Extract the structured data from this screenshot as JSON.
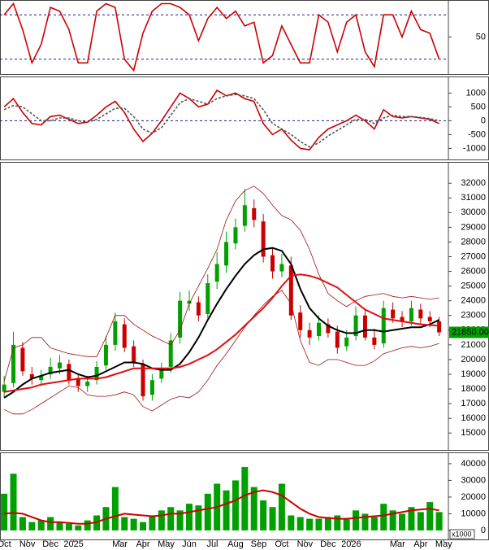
{
  "chart_data": [
    {
      "type": "line",
      "xlim": [
        -0.18,
        19.2
      ],
      "ylim": [
        0,
        100
      ],
      "yticks": [
        50
      ],
      "reference_lines": [
        80,
        20
      ],
      "x": [
        0,
        0.4,
        0.8,
        1.2,
        1.6,
        2,
        2.4,
        2.8,
        3.2,
        3.6,
        4,
        4.4,
        4.8,
        5.2,
        5.6,
        6,
        6.4,
        6.8,
        7.2,
        7.6,
        8,
        8.4,
        8.8,
        9.2,
        9.6,
        10,
        10.4,
        10.8,
        11.2,
        11.6,
        12,
        12.4,
        12.8,
        13.2,
        13.6,
        14,
        14.4,
        14.8,
        15.2,
        15.6,
        16,
        16.4,
        16.8,
        17.2,
        17.6,
        18,
        18.4,
        18.8
      ],
      "series": [
        {
          "color": "#cc0000",
          "values": [
            80,
            95,
            60,
            15,
            40,
            90,
            85,
            60,
            15,
            15,
            85,
            95,
            90,
            20,
            5,
            55,
            85,
            95,
            95,
            90,
            80,
            45,
            75,
            90,
            75,
            85,
            65,
            70,
            15,
            25,
            65,
            40,
            15,
            15,
            80,
            70,
            30,
            70,
            80,
            30,
            10,
            80,
            80,
            50,
            85,
            60,
            55,
            20
          ]
        }
      ]
    },
    {
      "type": "line",
      "xlim": [
        -0.18,
        19.2
      ],
      "ylim": [
        -1400,
        1600
      ],
      "yticks": [
        1000,
        500,
        0,
        -500,
        -1000
      ],
      "reference_lines": [
        0
      ],
      "x": [
        0,
        0.4,
        0.8,
        1.2,
        1.6,
        2,
        2.4,
        2.8,
        3.2,
        3.6,
        4,
        4.4,
        4.8,
        5.2,
        5.6,
        6,
        6.4,
        6.8,
        7.2,
        7.6,
        8,
        8.4,
        8.8,
        9.2,
        9.6,
        10,
        10.4,
        10.8,
        11.2,
        11.6,
        12,
        12.4,
        12.8,
        13.2,
        13.6,
        14,
        14.4,
        14.8,
        15.2,
        15.6,
        16,
        16.4,
        16.8,
        17.2,
        17.6,
        18,
        18.4,
        18.8
      ],
      "series": [
        {
          "color": "#cc0000",
          "values": [
            500,
            800,
            300,
            -100,
            -150,
            150,
            200,
            50,
            -100,
            -50,
            200,
            500,
            700,
            300,
            -300,
            -750,
            -450,
            0,
            500,
            1000,
            800,
            500,
            600,
            1100,
            900,
            1000,
            800,
            700,
            -100,
            -500,
            -300,
            -700,
            -1000,
            -1050,
            -600,
            -300,
            -150,
            0,
            200,
            0,
            -300,
            400,
            150,
            100,
            150,
            100,
            50,
            -100
          ]
        },
        {
          "color": "#555555",
          "dashed": true,
          "values": [
            400,
            550,
            500,
            250,
            0,
            0,
            100,
            100,
            0,
            -50,
            50,
            250,
            450,
            450,
            150,
            -300,
            -450,
            -250,
            200,
            650,
            800,
            700,
            600,
            800,
            900,
            950,
            900,
            800,
            400,
            -100,
            -300,
            -500,
            -750,
            -950,
            -800,
            -550,
            -350,
            -150,
            50,
            50,
            -100,
            100,
            200,
            150,
            150,
            120,
            80,
            0
          ]
        }
      ]
    },
    {
      "type": "candlestick",
      "xlim": [
        -0.18,
        19.2
      ],
      "ylim": [
        13850,
        33450
      ],
      "yticks": [
        15000,
        16000,
        17000,
        18000,
        19000,
        20000,
        21000,
        22000,
        23000,
        24000,
        25000,
        26000,
        27000,
        28000,
        29000,
        30000,
        31000,
        32000
      ],
      "up_color": "#00a000",
      "down_color": "#cc0000",
      "x": [
        0,
        0.4,
        0.8,
        1.2,
        1.6,
        2,
        2.4,
        2.8,
        3.2,
        3.6,
        4,
        4.4,
        4.8,
        5.2,
        5.6,
        6,
        6.4,
        6.8,
        7.2,
        7.6,
        8,
        8.4,
        8.8,
        9.2,
        9.6,
        10,
        10.4,
        10.8,
        11.2,
        11.6,
        12,
        12.4,
        12.8,
        13.2,
        13.6,
        14,
        14.4,
        14.8,
        15.2,
        15.6,
        16,
        16.4,
        16.8,
        17.2,
        17.6,
        18,
        18.4,
        18.8
      ],
      "open": [
        17800,
        18400,
        20800,
        19000,
        18600,
        19000,
        19400,
        19700,
        18700,
        18200,
        18600,
        19600,
        21000,
        22400,
        20900,
        19700,
        17600,
        18700,
        19500,
        21500,
        23800,
        23900,
        23100,
        25300,
        26400,
        27900,
        29100,
        30300,
        29400,
        27100,
        26000,
        26400,
        23200,
        22000,
        21600,
        22400,
        21900,
        20900,
        21600,
        23000,
        21500,
        21100,
        23400,
        22900,
        22600,
        23400,
        22900,
        22600
      ],
      "high": [
        18900,
        21900,
        21200,
        19500,
        19300,
        20100,
        20300,
        20000,
        19000,
        18900,
        19900,
        21600,
        23200,
        22800,
        21300,
        20000,
        19000,
        19800,
        21800,
        24600,
        24700,
        24300,
        25800,
        27300,
        28700,
        29600,
        31600,
        30900,
        29900,
        27600,
        27200,
        27000,
        23700,
        22500,
        23000,
        22800,
        22300,
        22000,
        23600,
        23500,
        22100,
        24000,
        23900,
        23300,
        24000,
        23800,
        23300,
        22900
      ],
      "low": [
        17400,
        18100,
        18900,
        18300,
        18200,
        18700,
        19000,
        18300,
        17800,
        17800,
        18300,
        19300,
        20600,
        20500,
        19500,
        17200,
        17200,
        18400,
        19100,
        21100,
        23300,
        22600,
        22800,
        24800,
        25900,
        27500,
        28700,
        29000,
        26600,
        25500,
        25600,
        22700,
        21500,
        21000,
        21300,
        21500,
        20400,
        20600,
        21300,
        21300,
        20700,
        20800,
        22500,
        22200,
        22300,
        22400,
        22200,
        21600
      ],
      "close": [
        18300,
        21000,
        19200,
        18700,
        18900,
        19500,
        19800,
        18600,
        18200,
        18500,
        19500,
        21000,
        22600,
        20800,
        19800,
        17500,
        18600,
        19400,
        21300,
        24000,
        24000,
        23000,
        25200,
        26500,
        28000,
        29000,
        30500,
        29500,
        27000,
        26000,
        26500,
        23000,
        22000,
        21500,
        22500,
        21800,
        20800,
        21500,
        23000,
        21500,
        21000,
        23500,
        22800,
        22600,
        23500,
        22800,
        22600,
        21850
      ],
      "series": [
        {
          "color": "#a01010",
          "width": 0.8,
          "values": [
            18500,
            20800,
            21000,
            21500,
            21500,
            20800,
            20600,
            20400,
            20300,
            20200,
            20200,
            21500,
            23000,
            23000,
            22400,
            22000,
            21600,
            21300,
            21000,
            22000,
            23800,
            25000,
            26200,
            27500,
            29500,
            30800,
            31500,
            31800,
            31300,
            30500,
            29800,
            29500,
            28800,
            27500,
            25800,
            24500,
            24000,
            23600,
            24000,
            24300,
            24400,
            24500,
            24300,
            24200,
            24300,
            24200,
            24100,
            24200
          ]
        },
        {
          "color": "#a01010",
          "width": 0.8,
          "values": [
            16600,
            16300,
            16300,
            16600,
            17000,
            17400,
            17800,
            18200,
            18100,
            17600,
            17500,
            17500,
            17600,
            17800,
            17600,
            16800,
            16500,
            16900,
            17300,
            17500,
            17400,
            17800,
            18600,
            19600,
            20400,
            21300,
            22200,
            23000,
            23700,
            24300,
            24700,
            23800,
            21300,
            19800,
            19600,
            20000,
            20000,
            19800,
            19600,
            19600,
            19900,
            20400,
            20600,
            20800,
            20900,
            20800,
            20900,
            21100
          ]
        },
        {
          "color": "#000000",
          "width": 2,
          "values": [
            17400,
            17800,
            18300,
            18700,
            18900,
            19100,
            19200,
            19300,
            19000,
            18800,
            18900,
            19200,
            19500,
            19800,
            19800,
            19700,
            19400,
            19300,
            19300,
            19700,
            20500,
            21500,
            22700,
            23800,
            24800,
            25700,
            26500,
            27100,
            27500,
            27600,
            27400,
            26500,
            24800,
            23500,
            22800,
            22300,
            22000,
            21800,
            21800,
            22000,
            22000,
            21900,
            22000,
            22100,
            22200,
            22200,
            22400,
            22700
          ]
        },
        {
          "color": "#dd1010",
          "width": 2,
          "values": [
            17800,
            17900,
            18000,
            18100,
            18300,
            18400,
            18500,
            18600,
            18700,
            18700,
            18700,
            18800,
            19000,
            19200,
            19400,
            19400,
            19400,
            19400,
            19400,
            19500,
            19700,
            20000,
            20300,
            20700,
            21200,
            21700,
            22300,
            22900,
            23500,
            24200,
            25000,
            25700,
            25800,
            25700,
            25500,
            25200,
            24900,
            24400,
            23900,
            23400,
            23100,
            22800,
            22700,
            22600,
            22500,
            22400,
            22350,
            22300
          ]
        }
      ],
      "last_price": {
        "value": 21850,
        "label": "21850.00",
        "color": "#00a000"
      }
    },
    {
      "type": "bar",
      "xlim": [
        -0.18,
        19.2
      ],
      "ylim": [
        -5400,
        46800
      ],
      "yticks": [
        0,
        10000,
        20000,
        30000,
        40000
      ],
      "unit_label": "x1000",
      "color": "#00a000",
      "x": [
        0,
        0.4,
        0.8,
        1.2,
        1.6,
        2,
        2.4,
        2.8,
        3.2,
        3.6,
        4,
        4.4,
        4.8,
        5.2,
        5.6,
        6,
        6.4,
        6.8,
        7.2,
        7.6,
        8,
        8.4,
        8.8,
        9.2,
        9.6,
        10,
        10.4,
        10.8,
        11.2,
        11.6,
        12,
        12.4,
        12.8,
        13.2,
        13.6,
        14,
        14.4,
        14.8,
        15.2,
        15.6,
        16,
        16.4,
        16.8,
        17.2,
        17.6,
        18,
        18.4,
        18.8
      ],
      "values": [
        22000,
        34000,
        8000,
        5000,
        6000,
        8000,
        5000,
        4000,
        3000,
        6000,
        9000,
        14000,
        26000,
        8000,
        7000,
        5000,
        9000,
        12000,
        14000,
        12000,
        16000,
        15000,
        22000,
        28000,
        24000,
        30000,
        38000,
        26000,
        18000,
        14000,
        28000,
        9000,
        8000,
        7000,
        7000,
        8000,
        9000,
        7000,
        12000,
        10000,
        8000,
        16000,
        12000,
        10000,
        14000,
        11000,
        17000,
        11000
      ],
      "series": [
        {
          "color": "#cc0000",
          "width": 2,
          "values": [
            10000,
            10500,
            10000,
            8000,
            6000,
            5000,
            5000,
            4500,
            4000,
            4000,
            5000,
            7000,
            8500,
            10000,
            9500,
            9000,
            8500,
            9000,
            10000,
            10000,
            11000,
            12000,
            13000,
            14000,
            16000,
            18000,
            21000,
            23000,
            24000,
            23000,
            21000,
            17000,
            13000,
            10000,
            8000,
            7500,
            7000,
            7000,
            7500,
            8000,
            8500,
            9000,
            10000,
            11000,
            12000,
            12500,
            13000,
            12000
          ]
        }
      ],
      "xticks": [
        {
          "value": 0,
          "label": "Oct"
        },
        {
          "value": 1,
          "label": "Nov"
        },
        {
          "value": 2,
          "label": "Dec"
        },
        {
          "value": 3,
          "label": "2025"
        },
        {
          "value": 5,
          "label": "Mar"
        },
        {
          "value": 6,
          "label": "Apr"
        },
        {
          "value": 7,
          "label": "May"
        },
        {
          "value": 8,
          "label": "Jun"
        },
        {
          "value": 9,
          "label": "Jul"
        },
        {
          "value": 10,
          "label": "Aug"
        },
        {
          "value": 11,
          "label": "Sep"
        },
        {
          "value": 12,
          "label": "Oct"
        },
        {
          "value": 13,
          "label": "Nov"
        },
        {
          "value": 14,
          "label": "Dec"
        },
        {
          "value": 15,
          "label": "2026"
        },
        {
          "value": 17,
          "label": "Mar"
        },
        {
          "value": 18,
          "label": "Apr"
        },
        {
          "value": 19,
          "label": "May"
        }
      ]
    }
  ]
}
